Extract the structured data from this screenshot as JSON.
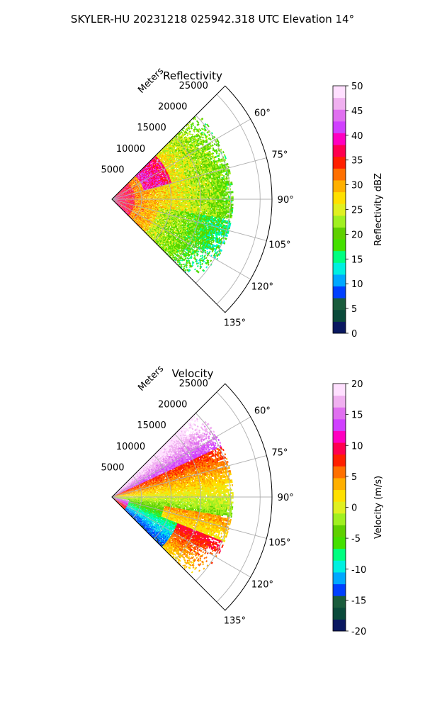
{
  "suptitle": "SKYLER-HU  20231218  025942.318 UTC Elevation 14°",
  "colors": {
    "grid": "#b0b0b0",
    "frame": "#000000"
  },
  "chart_data": [
    {
      "type": "heatmap",
      "projection": "polar-sector",
      "title": "Reflectivity",
      "radial_label": "Meters",
      "theta_range_deg": [
        45,
        135
      ],
      "radial_range_m": [
        0,
        27000
      ],
      "radial_ticks": [
        "5000",
        "10000",
        "15000",
        "20000",
        "25000"
      ],
      "angle_ticks": [
        "60°",
        "75°",
        "90°",
        "105°",
        "120°",
        "135°"
      ],
      "colorbar": {
        "label": "Reflectivity dBZ",
        "range": [
          0,
          50
        ],
        "ticks": [
          "0",
          "5",
          "10",
          "15",
          "20",
          "25",
          "30",
          "35",
          "40",
          "45",
          "50"
        ],
        "stops": [
          "#0a1860",
          "#0a4a3a",
          "#1a5c3c",
          "#0040ff",
          "#00a8ff",
          "#00f0e0",
          "#00ff80",
          "#44e000",
          "#5fd000",
          "#a0f020",
          "#e0f020",
          "#ffe000",
          "#ffb000",
          "#ff7000",
          "#ff2000",
          "#ff0050",
          "#ff00c0",
          "#d040ff",
          "#e070f0",
          "#f0b0f0",
          "#ffe0ff"
        ]
      }
    },
    {
      "type": "heatmap",
      "projection": "polar-sector",
      "title": "Velocity",
      "radial_label": "Meters",
      "theta_range_deg": [
        45,
        135
      ],
      "radial_range_m": [
        0,
        27000
      ],
      "radial_ticks": [
        "5000",
        "10000",
        "15000",
        "20000",
        "25000"
      ],
      "angle_ticks": [
        "60°",
        "75°",
        "90°",
        "105°",
        "120°",
        "135°"
      ],
      "colorbar": {
        "label": "Velocity (m/s)",
        "range": [
          -20,
          20
        ],
        "ticks": [
          "-20",
          "-15",
          "-10",
          "-5",
          "0",
          "5",
          "10",
          "15",
          "20"
        ],
        "stops": [
          "#0a1860",
          "#0a4a3a",
          "#1a5c3c",
          "#0040ff",
          "#00a8ff",
          "#00f0e0",
          "#00ff80",
          "#44e000",
          "#5fd000",
          "#a0f020",
          "#e0f020",
          "#ffe000",
          "#ffb000",
          "#ff7000",
          "#ff2000",
          "#ff0050",
          "#ff00c0",
          "#d040ff",
          "#e070f0",
          "#f0b0f0",
          "#ffe0ff"
        ]
      }
    }
  ]
}
